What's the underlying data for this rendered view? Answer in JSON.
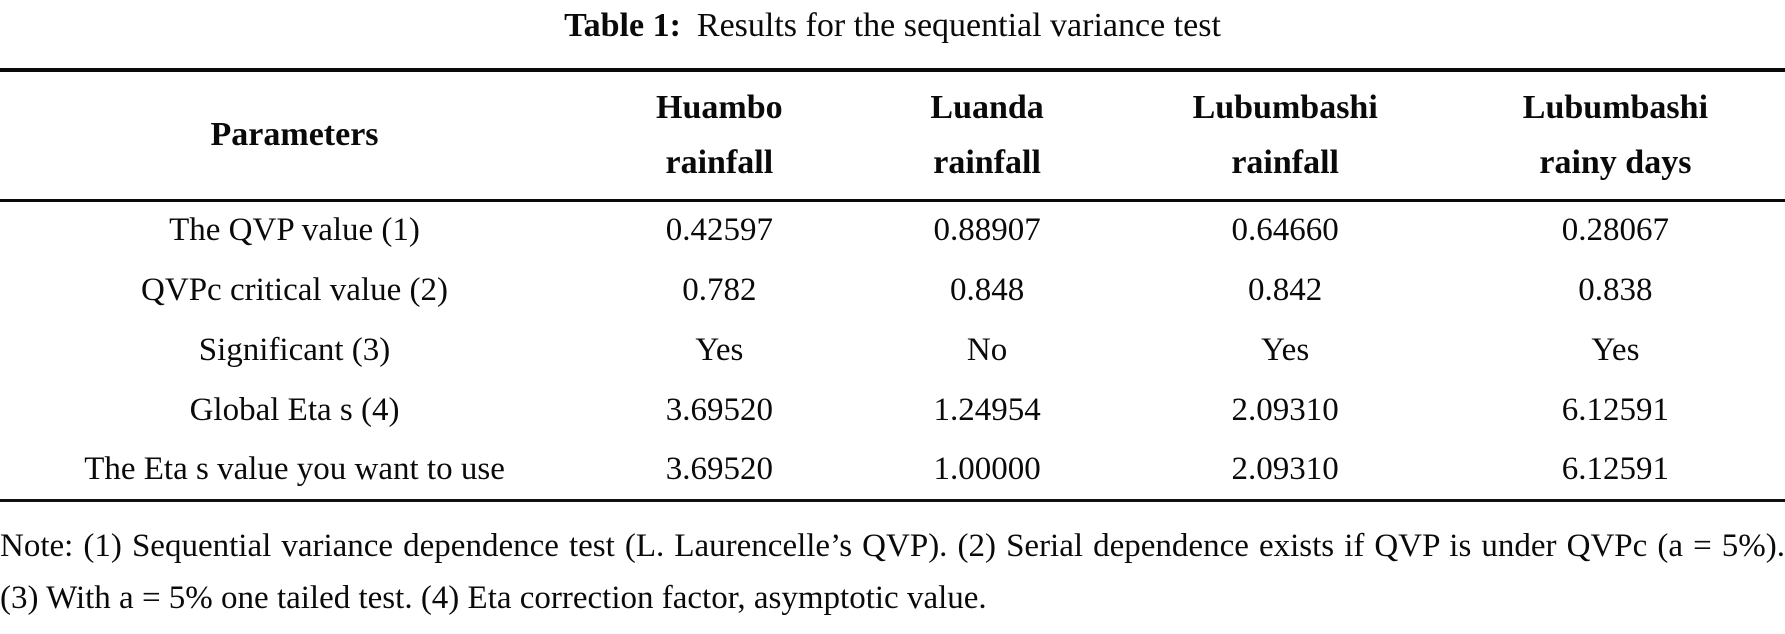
{
  "caption": {
    "label": "Table 1:",
    "text": "Results for the sequential variance test"
  },
  "table": {
    "param_header": "Parameters",
    "columns": [
      {
        "line1": "Huambo",
        "line2": "rainfall"
      },
      {
        "line1": "Luanda",
        "line2": "rainfall"
      },
      {
        "line1": "Lubumbashi",
        "line2": "rainfall"
      },
      {
        "line1": "Lubumbashi",
        "line2": "rainy days"
      }
    ],
    "rows": [
      {
        "label": "The QVP value (1)",
        "values": [
          "0.42597",
          "0.88907",
          "0.64660",
          "0.28067"
        ]
      },
      {
        "label": "QVPc critical value (2)",
        "values": [
          "0.782",
          "0.848",
          "0.842",
          "0.838"
        ]
      },
      {
        "label": "Significant (3)",
        "values": [
          "Yes",
          "No",
          "Yes",
          "Yes"
        ]
      },
      {
        "label": "Global Eta s (4)",
        "values": [
          "3.69520",
          "1.24954",
          "2.09310",
          "6.12591"
        ]
      },
      {
        "label": "The Eta s value you want to use",
        "values": [
          "3.69520",
          "1.00000",
          "2.09310",
          "6.12591"
        ]
      }
    ]
  },
  "note": "Note: (1) Sequential variance dependence test (L. Laurencelle’s QVP). (2) Serial dependence exists if QVP is under QVPc (a = 5%). (3) With a = 5% one tailed test. (4) Eta correction factor, asymptotic value.",
  "colors": {
    "text": "#0a0a0a",
    "background": "#ffffff",
    "rule": "#0a0a0a"
  }
}
